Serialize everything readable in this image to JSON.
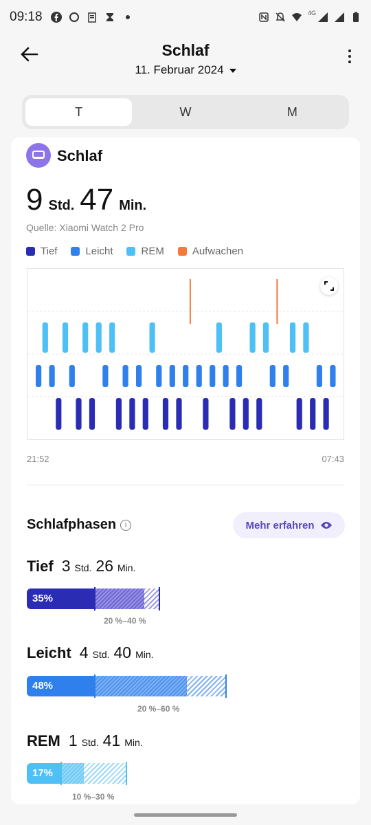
{
  "status_bar": {
    "time": "09:18",
    "network": "4G",
    "left_icons": [
      "facebook-icon",
      "threads-icon",
      "clipboard-icon",
      "hourglass-icon",
      "dot-icon"
    ],
    "right_icons": [
      "nfc-icon",
      "mute-icon",
      "wifi-icon",
      "signal-icon",
      "signal-icon",
      "battery-icon"
    ]
  },
  "header": {
    "title": "Schlaf",
    "date": "11. Februar 2024"
  },
  "segments": [
    "T",
    "W",
    "M"
  ],
  "card": {
    "title": "Schlaf",
    "hours": "9",
    "hours_unit": "Std.",
    "minutes": "47",
    "minutes_unit": "Min.",
    "source": "Quelle: Xiaomi Watch 2 Pro"
  },
  "legend": [
    {
      "label": "Tief",
      "color": "#2a2db3"
    },
    {
      "label": "Leicht",
      "color": "#2f80ed"
    },
    {
      "label": "REM",
      "color": "#4fc0f5"
    },
    {
      "label": "Aufwachen",
      "color": "#f5793a"
    }
  ],
  "chart_data": {
    "type": "hypnogram",
    "x_start": "21:52",
    "x_end": "07:43",
    "stages": [
      "Aufwachen",
      "REM",
      "Leicht",
      "Tief"
    ],
    "sequence": [
      "Leicht",
      "REM",
      "Leicht",
      "Tief",
      "REM",
      "Leicht",
      "Tief",
      "REM",
      "Tief",
      "REM",
      "Leicht",
      "REM",
      "Tief",
      "Leicht",
      "Tief",
      "Leicht",
      "Tief",
      "REM",
      "Leicht",
      "Tief",
      "Leicht",
      "Tief",
      "Leicht",
      "Aufwachen",
      "Leicht",
      "Tief",
      "Leicht",
      "REM",
      "Leicht",
      "Tief",
      "Leicht",
      "Tief",
      "REM",
      "Tief",
      "REM",
      "Leicht",
      "Aufwachen",
      "Leicht",
      "REM",
      "Tief",
      "REM",
      "Tief",
      "Leicht",
      "Tief",
      "Leicht"
    ]
  },
  "phases": {
    "title": "Schlafphasen",
    "more_label": "Mehr erfahren",
    "items": [
      {
        "name": "Tief",
        "hours": "3",
        "minutes": "26",
        "h_unit": "Std.",
        "m_unit": "Min.",
        "percent": "35%",
        "range": "20 %–40 %",
        "color": "#2a2db3",
        "hatch": "#7a72d8"
      },
      {
        "name": "Leicht",
        "hours": "4",
        "minutes": "40",
        "h_unit": "Std.",
        "m_unit": "Min.",
        "percent": "48%",
        "range": "20 %–60 %",
        "color": "#2f80ed",
        "hatch": "#6aa6f2"
      },
      {
        "name": "REM",
        "hours": "1",
        "minutes": "41",
        "h_unit": "Std.",
        "m_unit": "Min.",
        "percent": "17%",
        "range": "10 %–30 %",
        "color": "#4fc0f5",
        "hatch": "#8cd6f7"
      }
    ]
  }
}
